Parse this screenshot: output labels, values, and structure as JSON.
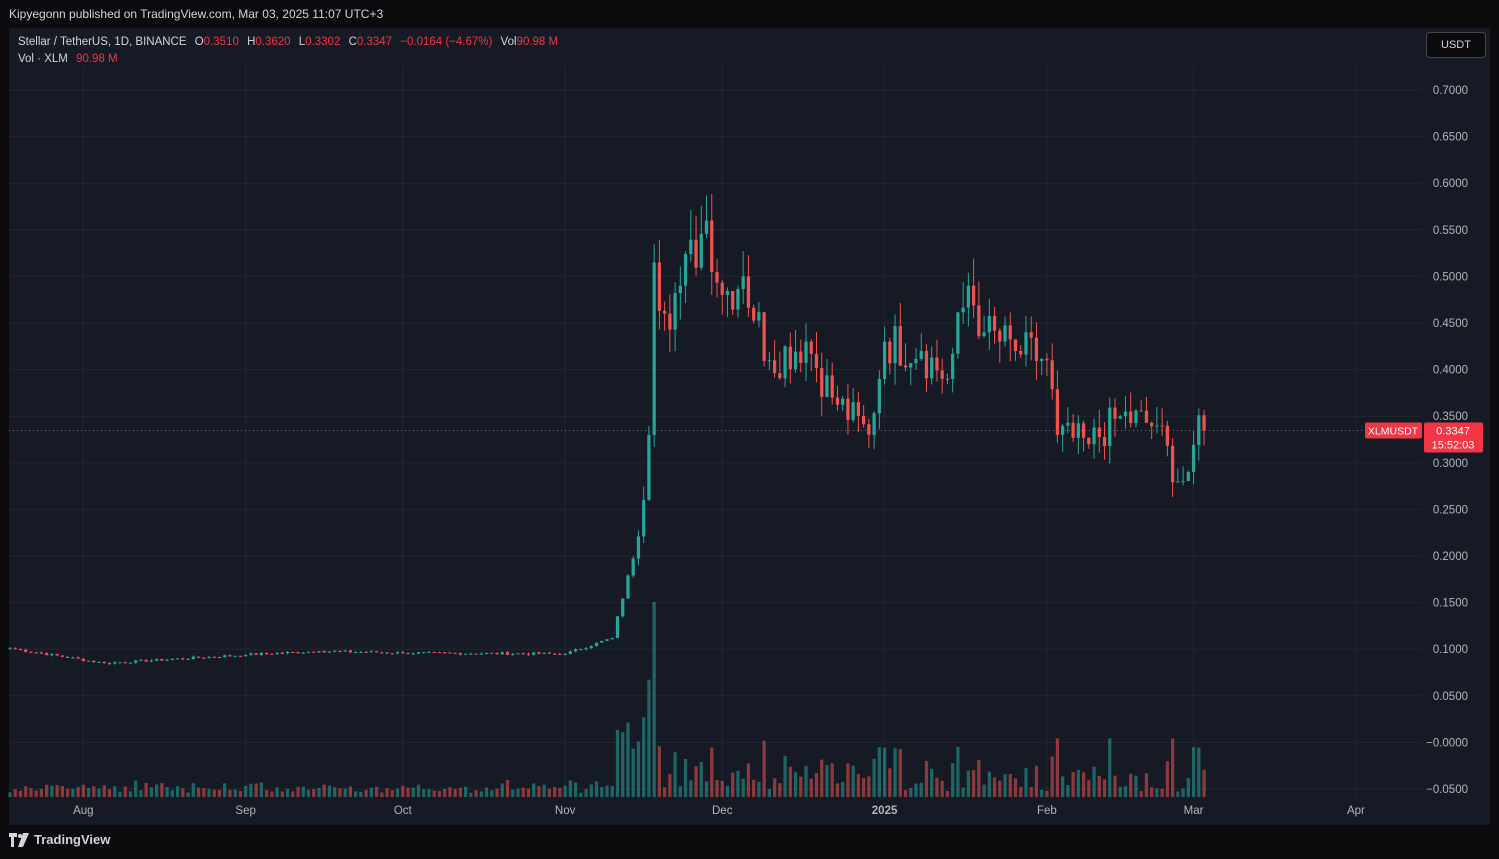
{
  "header": {
    "published": "Kipyegonn published on TradingView.com, Mar 03, 2025 11:07 UTC+3"
  },
  "legend": {
    "symbol": "Stellar / TetherUS, 1D, BINANCE",
    "o_label": "O",
    "o_value": "0.3510",
    "h_label": "H",
    "h_value": "0.3620",
    "l_label": "L",
    "l_value": "0.3302",
    "c_label": "C",
    "c_value": "0.3347",
    "change": "−0.0164 (−4.67%)",
    "vol_label": "Vol",
    "vol_value": "90.98 M",
    "vol2_label": "Vol · XLM",
    "vol2_value": "90.98 M"
  },
  "currency_button": "USDT",
  "price_tag": {
    "symbol": "XLMUSDT",
    "price": "0.3347",
    "countdown": "15:52:03"
  },
  "footer": {
    "brand": "TradingView"
  },
  "colors": {
    "up": "#26a69a",
    "down": "#ef5350",
    "up_vol": "#26a69a",
    "down_vol": "#ef5350",
    "tag": "#f23645",
    "background": "#161a25"
  },
  "chart_data": {
    "type": "candlestick",
    "title": "Stellar / TetherUS, 1D, BINANCE",
    "ylim": [
      -0.05,
      0.7
    ],
    "y_ticks": [
      "0.7000",
      "0.6500",
      "0.6000",
      "0.5500",
      "0.5000",
      "0.4500",
      "0.4000",
      "0.3500",
      "0.3000",
      "0.2500",
      "0.2000",
      "0.1500",
      "0.1000",
      "0.0500",
      "−0.0000",
      "−0.0500"
    ],
    "x_ticks": [
      "Aug",
      "Sep",
      "Oct",
      "Nov",
      "Dec",
      "2025",
      "Feb",
      "Mar",
      "Apr"
    ],
    "last_price": 0.3347,
    "grid": true,
    "candles_key_points": [
      {
        "date": "2024-07-18",
        "close": 0.101
      },
      {
        "date": "2024-08-05",
        "close": 0.085
      },
      {
        "date": "2024-09-01",
        "close": 0.094
      },
      {
        "date": "2024-09-15",
        "close": 0.098
      },
      {
        "date": "2024-10-01",
        "close": 0.096
      },
      {
        "date": "2024-11-01",
        "close": 0.095
      },
      {
        "date": "2024-11-10",
        "close": 0.112
      },
      {
        "date": "2024-11-15",
        "close": 0.221
      },
      {
        "date": "2024-11-17",
        "close": 0.33
      },
      {
        "date": "2024-11-18",
        "close": 0.515
      },
      {
        "date": "2024-11-20",
        "close": 0.46
      },
      {
        "date": "2024-11-23",
        "close": 0.49
      },
      {
        "date": "2024-11-28",
        "close": 0.56
      },
      {
        "date": "2024-12-01",
        "close": 0.48
      },
      {
        "date": "2024-12-05",
        "close": 0.5
      },
      {
        "date": "2024-12-10",
        "close": 0.41
      },
      {
        "date": "2024-12-17",
        "close": 0.43
      },
      {
        "date": "2024-12-22",
        "close": 0.37
      },
      {
        "date": "2024-12-29",
        "close": 0.33
      },
      {
        "date": "2025-01-01",
        "close": 0.43
      },
      {
        "date": "2025-01-08",
        "close": 0.42
      },
      {
        "date": "2025-01-13",
        "close": 0.39
      },
      {
        "date": "2025-01-17",
        "close": 0.49
      },
      {
        "date": "2025-01-20",
        "close": 0.44
      },
      {
        "date": "2025-01-26",
        "close": 0.42
      },
      {
        "date": "2025-02-01",
        "close": 0.41
      },
      {
        "date": "2025-02-03",
        "close": 0.33
      },
      {
        "date": "2025-02-09",
        "close": 0.32
      },
      {
        "date": "2025-02-15",
        "close": 0.35
      },
      {
        "date": "2025-02-22",
        "close": 0.34
      },
      {
        "date": "2025-02-26",
        "close": 0.28
      },
      {
        "date": "2025-02-28",
        "close": 0.29
      },
      {
        "date": "2025-03-02",
        "close": 0.351
      },
      {
        "date": "2025-03-03",
        "close": 0.3347
      }
    ],
    "volume_series": {
      "name": "Vol · XLM",
      "last": "90.98 M"
    }
  }
}
